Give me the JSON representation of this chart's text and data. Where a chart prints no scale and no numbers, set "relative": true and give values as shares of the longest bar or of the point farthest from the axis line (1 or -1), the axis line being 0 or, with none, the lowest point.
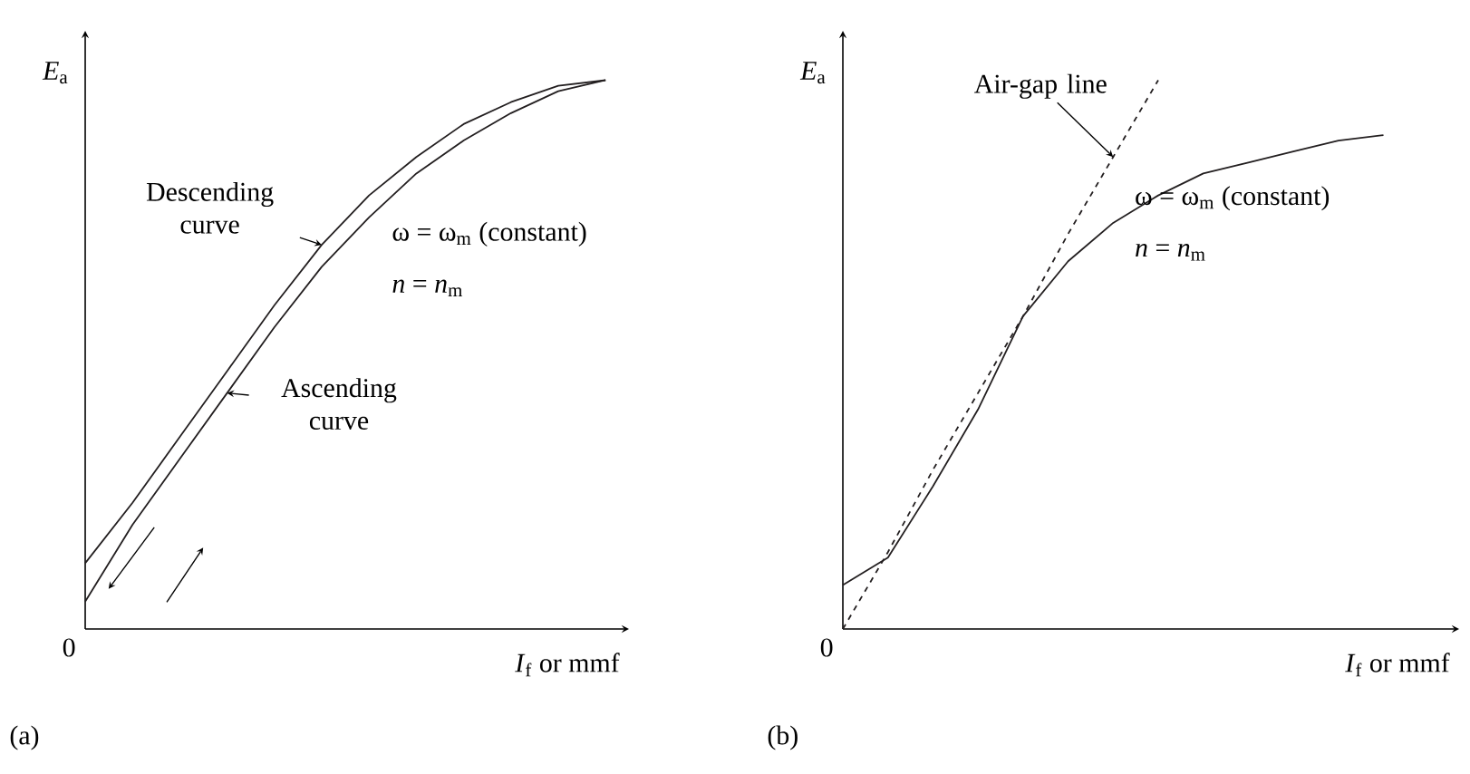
{
  "chart_data": [
    {
      "type": "line",
      "title": "(a)",
      "xlabel": "*I*$_{f}$ or mmf",
      "ylabel": "*E*$_{a}$",
      "relative": true,
      "categories": [
        null,
        null,
        null,
        null,
        null,
        null,
        null,
        null,
        null,
        null,
        null,
        null
      ],
      "series": [
        {
          "name": "Descending curve",
          "color": "#231f20",
          "values": [
            0.12,
            0.23,
            0.35,
            0.47,
            0.59,
            0.7,
            0.79,
            0.86,
            0.92,
            0.96,
            0.99,
            1.0
          ]
        },
        {
          "name": "Ascending curve",
          "color": "#231f20",
          "values": [
            0.05,
            0.19,
            0.31,
            0.43,
            0.55,
            0.66,
            0.75,
            0.83,
            0.89,
            0.94,
            0.98,
            1.0
          ]
        }
      ],
      "annotations": [
        "0",
        "ω = ω$_{m}$ (constant)",
        "*n* = *n*$_{m}$"
      ]
    },
    {
      "type": "line",
      "title": "(b)",
      "xlabel": "*I*$_{f}$ or mmf",
      "ylabel": "*E*$_{a}$",
      "relative": true,
      "categories": [
        null,
        null,
        null,
        null,
        null,
        null,
        null,
        null,
        null,
        null,
        null,
        null,
        null
      ],
      "series": [
        {
          "color": "#231f20",
          "values": [
            0.08,
            0.13,
            0.26,
            0.4,
            0.57,
            0.67,
            0.74,
            0.79,
            0.83,
            0.85,
            0.87,
            0.89,
            0.9
          ]
        },
        {
          "name": "Air-gap line",
          "color": "#231f20",
          "line_style": "dashed",
          "values": [
            0.0,
            0.14,
            0.29,
            0.43,
            0.57,
            0.72,
            0.86,
            1.0,
            null,
            null,
            null,
            null,
            null
          ]
        }
      ],
      "annotations": [
        "0",
        "ω = ω$_{m}$ (constant)",
        "*n* = *n*$_{m}$"
      ]
    }
  ]
}
